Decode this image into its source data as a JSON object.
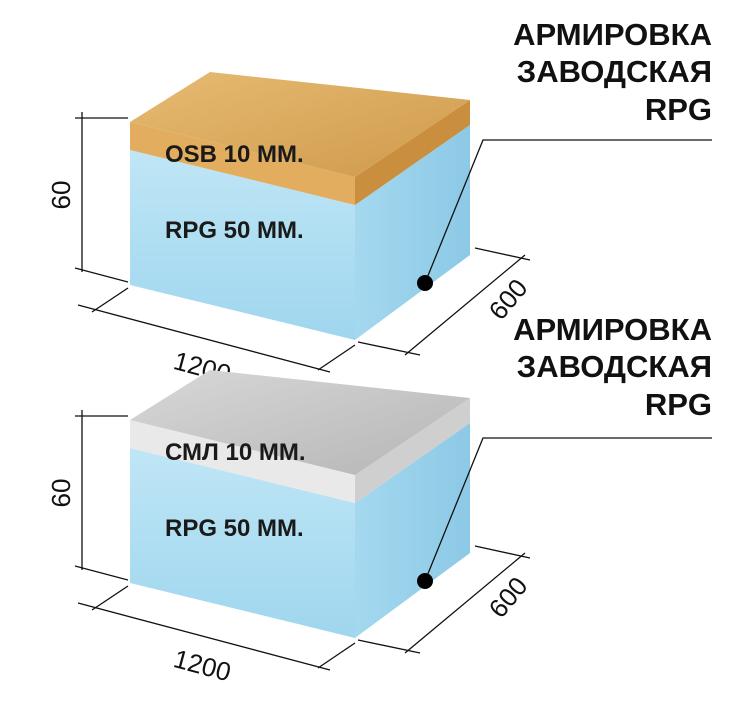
{
  "panels": [
    {
      "caption_lines": [
        "АРМИРОВКА",
        "ЗАВОДСКАЯ",
        "RPG"
      ],
      "layers": [
        "OSB 10 ММ.",
        "RPG 50 ММ."
      ],
      "dimensions": {
        "height": 60,
        "length": 1200,
        "width": 600
      }
    },
    {
      "caption_lines": [
        "АРМИРОВКА",
        "ЗАВОДСКАЯ",
        "RPG"
      ],
      "layers": [
        "СМЛ 10 ММ.",
        "RPG 50 ММ."
      ],
      "dimensions": {
        "height": 60,
        "length": 1200,
        "width": 600
      }
    }
  ]
}
